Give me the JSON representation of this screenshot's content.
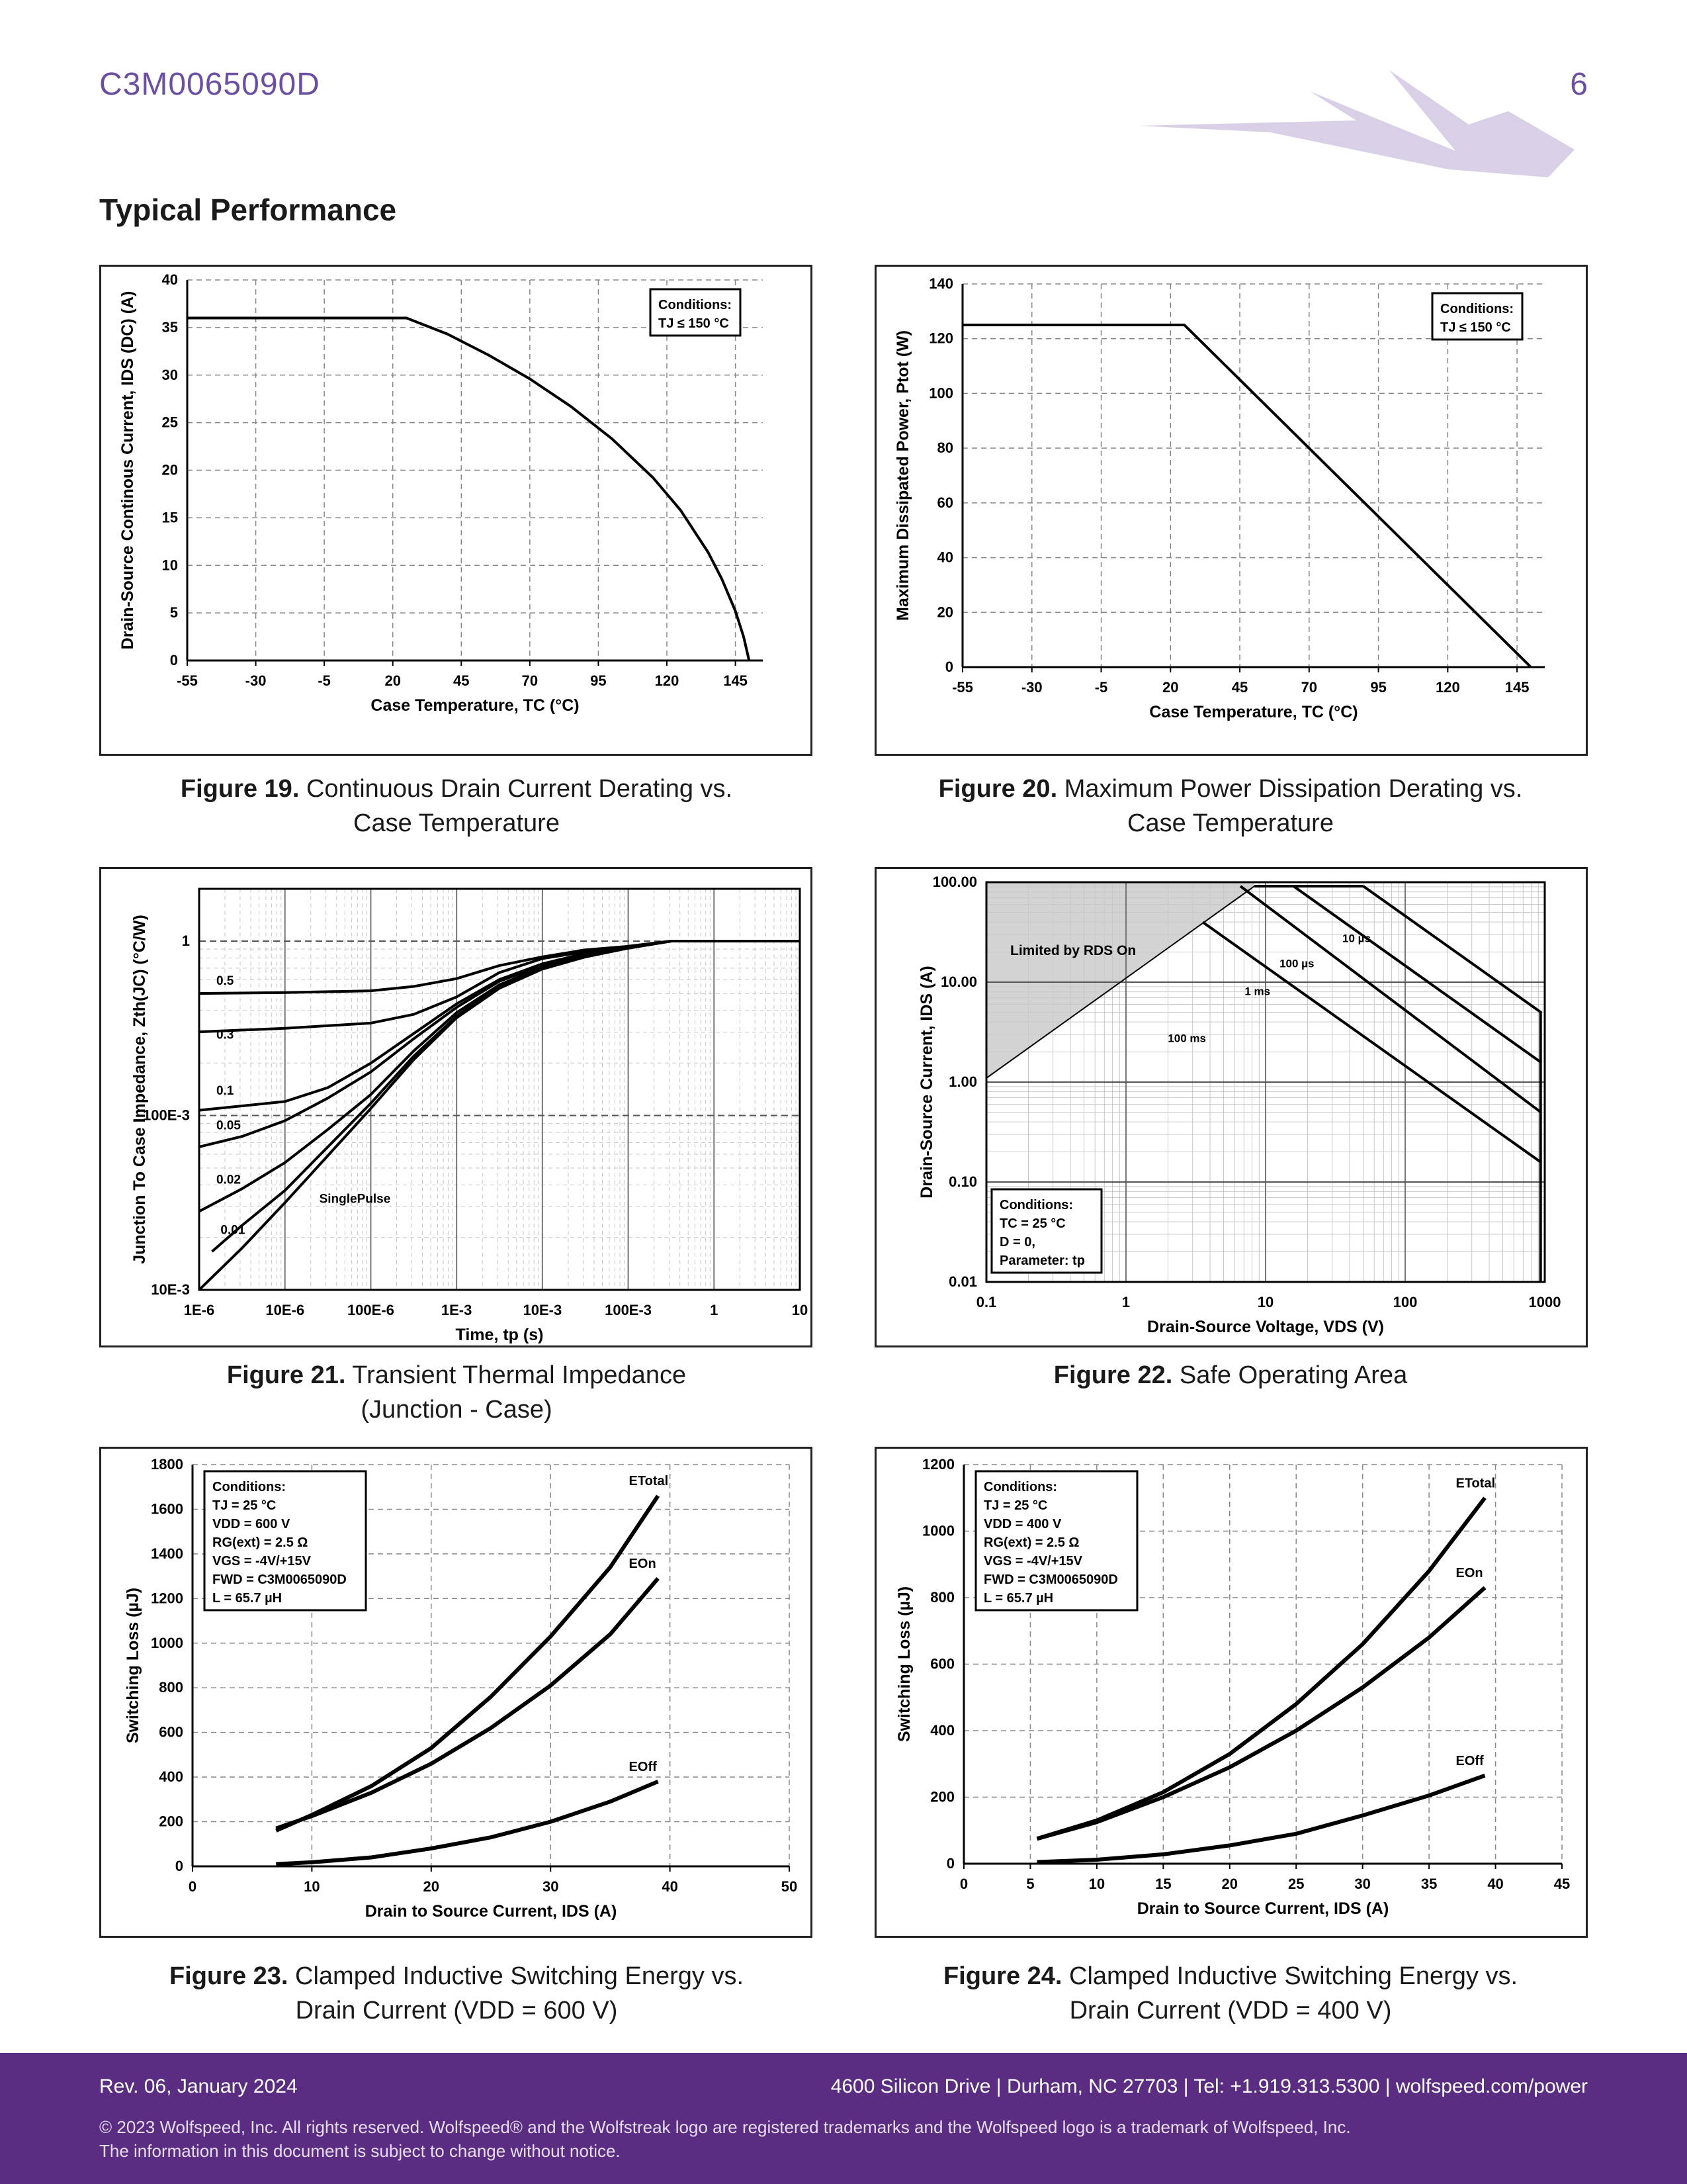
{
  "header": {
    "part_number": "C3M0065090D",
    "page_number": "6",
    "section_title": "Typical Performance"
  },
  "captions": [
    {
      "fig": "Figure 19.",
      "line1": "Continuous Drain Current Derating vs.",
      "line2": "Case Temperature"
    },
    {
      "fig": "Figure 20.",
      "line1": "Maximum Power Dissipation Derating vs.",
      "line2": "Case Temperature"
    },
    {
      "fig": "Figure 21.",
      "line1": "Transient Thermal Impedance",
      "line2": "(Junction - Case)"
    },
    {
      "fig": "Figure 22.",
      "line1": "Safe Operating Area",
      "line2": ""
    },
    {
      "fig": "Figure 23.",
      "line1": "Clamped Inductive Switching Energy vs.",
      "line2": "Drain Current (VDD = 600 V)"
    },
    {
      "fig": "Figure 24.",
      "line1": "Clamped Inductive Switching Energy vs.",
      "line2": "Drain Current (VDD = 400 V)"
    }
  ],
  "footer": {
    "revision": "Rev. 06, January 2024",
    "address": "4600 Silicon Drive  |  Durham, NC 27703  |  Tel: +1.919.313.5300  |  wolfspeed.com/power",
    "copyright": "© 2023 Wolfspeed, Inc. All rights reserved. Wolfspeed® and the Wolfstreak logo are registered trademarks and the Wolfspeed logo is a trademark of Wolfspeed, Inc.",
    "notice": "The information in this document is subject to change without notice."
  },
  "colors": {
    "brand": "#5a2d82",
    "header_text": "#6b4fa0",
    "logo": "#d9d0e8",
    "soa_fill": "#d3d3d3"
  },
  "chart_data": [
    {
      "type": "line",
      "id": "fig19",
      "title": "",
      "xlabel": "Case Temperature, TC (°C)",
      "ylabel": "Drain-Source Continous Current, IDS (DC) (A)",
      "xlim": [
        -55,
        155
      ],
      "ylim": [
        0,
        40
      ],
      "xticks": [
        -55,
        -30,
        -5,
        20,
        45,
        70,
        95,
        120,
        145
      ],
      "yticks": [
        0,
        5,
        10,
        15,
        20,
        25,
        30,
        35,
        40
      ],
      "annotation": [
        "Conditions:",
        "TJ ≤ 150 °C"
      ],
      "series": [
        {
          "name": "IDS",
          "x": [
            -55,
            25,
            40,
            55,
            70,
            85,
            100,
            115,
            125,
            135,
            140,
            145,
            148,
            150
          ],
          "y": [
            36,
            36,
            34.3,
            32.1,
            29.6,
            26.7,
            23.3,
            19.2,
            15.8,
            11.4,
            8.6,
            5.2,
            2.5,
            0
          ]
        }
      ]
    },
    {
      "type": "line",
      "id": "fig20",
      "title": "",
      "xlabel": "Case Temperature, TC (°C)",
      "ylabel": "Maximum Dissipated Power, Ptot (W)",
      "xlim": [
        -55,
        155
      ],
      "ylim": [
        0,
        140
      ],
      "xticks": [
        -55,
        -30,
        -5,
        20,
        45,
        70,
        95,
        120,
        145
      ],
      "yticks": [
        0,
        20,
        40,
        60,
        80,
        100,
        120,
        140
      ],
      "annotation": [
        "Conditions:",
        "TJ ≤ 150 °C"
      ],
      "series": [
        {
          "name": "Ptot",
          "x": [
            -55,
            25,
            150
          ],
          "y": [
            125,
            125,
            0
          ]
        }
      ]
    },
    {
      "type": "line",
      "id": "fig21",
      "scale": "loglog",
      "title": "",
      "xlabel": "Time, tp (s)",
      "ylabel": "Junction To Case Impedance, Zth(JC) (°C/W)",
      "xlim_exp": [
        -6,
        1
      ],
      "ylim_exp": [
        -2,
        0.3
      ],
      "xticks": [
        {
          "e": -6,
          "label": "1E-6"
        },
        {
          "e": -5,
          "label": "10E-6"
        },
        {
          "e": -4,
          "label": "100E-6"
        },
        {
          "e": -3,
          "label": "1E-3"
        },
        {
          "e": -2,
          "label": "10E-3"
        },
        {
          "e": -1,
          "label": "100E-3"
        },
        {
          "e": 0,
          "label": "1"
        },
        {
          "e": 1,
          "label": "10"
        }
      ],
      "yticks": [
        {
          "e": -2,
          "label": "10E-3"
        },
        {
          "e": -1,
          "label": "100E-3"
        },
        {
          "e": 0,
          "label": "1"
        }
      ],
      "series": [
        {
          "name": "0.5",
          "x": [
            -6,
            -5,
            -4,
            -3.5,
            -3,
            -2.5,
            -2,
            -1.5,
            -1,
            -0.5,
            0,
            1
          ],
          "y": [
            -0.3,
            -0.295,
            -0.285,
            -0.26,
            -0.215,
            -0.14,
            -0.09,
            -0.05,
            -0.03,
            0,
            0,
            0
          ]
        },
        {
          "name": "0.3",
          "x": [
            -6,
            -5,
            -4,
            -3.5,
            -3,
            -2.5,
            -2,
            -1.5,
            -1,
            -0.5,
            0,
            1
          ],
          "y": [
            -0.52,
            -0.5,
            -0.47,
            -0.42,
            -0.32,
            -0.18,
            -0.1,
            -0.06,
            -0.03,
            0,
            0,
            0
          ]
        },
        {
          "name": "0.1",
          "x": [
            -6,
            -5,
            -4.5,
            -4,
            -3.5,
            -3,
            -2.5,
            -2,
            -1.5,
            -1,
            -0.5,
            0,
            1
          ],
          "y": [
            -0.97,
            -0.92,
            -0.84,
            -0.7,
            -0.53,
            -0.36,
            -0.22,
            -0.13,
            -0.07,
            -0.03,
            0,
            0,
            0
          ]
        },
        {
          "name": "0.05",
          "x": [
            -6,
            -5.5,
            -5,
            -4.5,
            -4,
            -3.5,
            -3,
            -2.5,
            -2,
            -1.5,
            -1,
            -0.5,
            0,
            1
          ],
          "y": [
            -1.18,
            -1.12,
            -1.03,
            -0.9,
            -0.75,
            -0.56,
            -0.38,
            -0.23,
            -0.14,
            -0.08,
            -0.04,
            0,
            0,
            0
          ]
        },
        {
          "name": "0.02",
          "x": [
            -6,
            -5.5,
            -5,
            -4.5,
            -4,
            -3.5,
            -3,
            -2.5,
            -2,
            -1.5,
            -1,
            -0.5,
            0,
            1
          ],
          "y": [
            -1.55,
            -1.42,
            -1.27,
            -1.08,
            -0.88,
            -0.63,
            -0.41,
            -0.25,
            -0.15,
            -0.09,
            -0.04,
            0,
            0,
            0
          ]
        },
        {
          "name": "0.01",
          "x": [
            -5.85,
            -5.5,
            -5,
            -4.5,
            -4,
            -3.5,
            -3,
            -2.5,
            -2,
            -1.5,
            -1,
            -0.5,
            0,
            1
          ],
          "y": [
            -1.78,
            -1.63,
            -1.43,
            -1.18,
            -0.93,
            -0.66,
            -0.43,
            -0.26,
            -0.16,
            -0.09,
            -0.04,
            0,
            0,
            0
          ]
        },
        {
          "name": "SinglePulse",
          "x": [
            -6,
            -5.5,
            -5,
            -4.5,
            -4,
            -3.5,
            -3,
            -2.5,
            -2,
            -1.5,
            -1,
            -0.5,
            0,
            1
          ],
          "y": [
            -2.0,
            -1.76,
            -1.5,
            -1.23,
            -0.96,
            -0.68,
            -0.44,
            -0.27,
            -0.16,
            -0.09,
            -0.04,
            0,
            0,
            0
          ]
        }
      ]
    },
    {
      "type": "line",
      "id": "fig22",
      "scale": "loglog",
      "title": "",
      "xlabel": "Drain-Source Voltage, VDS (V)",
      "ylabel": "Drain-Source Current, IDS (A)",
      "xlim_exp": [
        -1,
        3
      ],
      "ylim_exp": [
        -2,
        2
      ],
      "xticks": [
        {
          "e": -1,
          "label": "0.1"
        },
        {
          "e": 0,
          "label": "1"
        },
        {
          "e": 1,
          "label": "10"
        },
        {
          "e": 2,
          "label": "100"
        },
        {
          "e": 3,
          "label": "1000"
        }
      ],
      "yticks": [
        {
          "e": -2,
          "label": "0.01"
        },
        {
          "e": -1,
          "label": "0.10"
        },
        {
          "e": 0,
          "label": "1.00"
        },
        {
          "e": 1,
          "label": "10.00"
        },
        {
          "e": 2,
          "label": "100.00"
        }
      ],
      "region_label": "Limited by RDS On",
      "annotation": [
        "Conditions:",
        "TC = 25 °C",
        "D = 0,",
        "Parameter: tp"
      ],
      "limit_line": {
        "x": [
          -1,
          0.92
        ],
        "y": [
          0.04,
          1.96
        ]
      },
      "series": [
        {
          "name": "10 µs",
          "x": [
            1.7,
            2.97,
            2.97
          ],
          "y": [
            1.96,
            0.7,
            -2
          ]
        },
        {
          "name": "100 µs",
          "x": [
            1.2,
            2.97
          ],
          "y": [
            1.96,
            0.2
          ]
        },
        {
          "name": "1 ms",
          "x": [
            0.82,
            2.97
          ],
          "y": [
            1.96,
            -0.3
          ]
        },
        {
          "name": "100 ms",
          "x": [
            0.55,
            2.97
          ],
          "y": [
            1.6,
            -0.8
          ]
        }
      ]
    },
    {
      "type": "line",
      "id": "fig23",
      "title": "",
      "xlabel": "Drain to Source Current, IDS (A)",
      "ylabel": "Switching Loss (µJ)",
      "xlim": [
        0,
        50
      ],
      "ylim": [
        0,
        1800
      ],
      "xticks": [
        0,
        10,
        20,
        30,
        40,
        50
      ],
      "yticks": [
        0,
        200,
        400,
        600,
        800,
        1000,
        1200,
        1400,
        1600,
        1800
      ],
      "annotation": [
        "Conditions:",
        "TJ = 25 °C",
        "VDD = 600 V",
        "RG(ext) = 2.5 Ω",
        "VGS = -4V/+15V",
        "FWD = C3M0065090D",
        "L = 65.7 µH"
      ],
      "series": [
        {
          "name": "ETotal",
          "x": [
            7,
            10,
            15,
            20,
            25,
            30,
            35,
            39
          ],
          "y": [
            160,
            230,
            360,
            530,
            760,
            1030,
            1340,
            1660
          ]
        },
        {
          "name": "EOn",
          "x": [
            7,
            10,
            15,
            20,
            25,
            30,
            35,
            39
          ],
          "y": [
            170,
            225,
            330,
            460,
            620,
            810,
            1040,
            1290
          ]
        },
        {
          "name": "EOff",
          "x": [
            7,
            10,
            15,
            20,
            25,
            30,
            35,
            39
          ],
          "y": [
            10,
            18,
            40,
            80,
            130,
            200,
            290,
            380
          ]
        }
      ]
    },
    {
      "type": "line",
      "id": "fig24",
      "title": "",
      "xlabel": "Drain to Source Current, IDS (A)",
      "ylabel": "Switching Loss (µJ)",
      "xlim": [
        0,
        45
      ],
      "ylim": [
        0,
        1200
      ],
      "xticks": [
        0,
        5,
        10,
        15,
        20,
        25,
        30,
        35,
        40,
        45
      ],
      "yticks": [
        0,
        200,
        400,
        600,
        800,
        1000,
        1200
      ],
      "annotation": [
        "Conditions:",
        "TJ = 25 °C",
        "VDD = 400 V",
        "RG(ext) = 2.5 Ω",
        "VGS = -4V/+15V",
        "FWD = C3M0065090D",
        "L = 65.7 µH"
      ],
      "series": [
        {
          "name": "ETotal",
          "x": [
            5.5,
            10,
            15,
            20,
            25,
            30,
            35,
            39.2
          ],
          "y": [
            75,
            130,
            215,
            330,
            480,
            660,
            880,
            1100
          ]
        },
        {
          "name": "EOn",
          "x": [
            5.5,
            10,
            15,
            20,
            25,
            30,
            35,
            39.2
          ],
          "y": [
            75,
            125,
            200,
            290,
            400,
            530,
            680,
            830
          ]
        },
        {
          "name": "EOff",
          "x": [
            5.5,
            10,
            15,
            20,
            25,
            30,
            35,
            39.2
          ],
          "y": [
            5,
            12,
            28,
            55,
            90,
            145,
            205,
            265
          ]
        }
      ]
    }
  ]
}
